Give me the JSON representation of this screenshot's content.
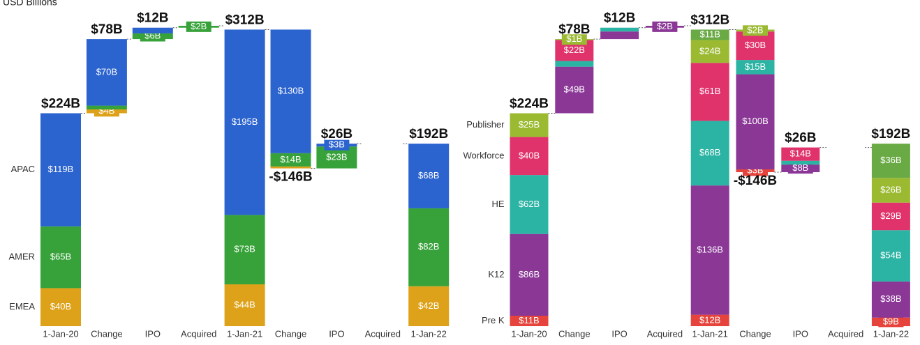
{
  "chart_data": [
    {
      "type": "waterfall",
      "title": "USD Billions",
      "categories": [
        "1-Jan-20",
        "Change",
        "IPO",
        "Acquired",
        "1-Jan-21",
        "Change",
        "IPO",
        "Acquired",
        "1-Jan-22"
      ],
      "kinds": [
        "total",
        "delta",
        "delta",
        "delta",
        "total",
        "delta",
        "delta",
        "delta",
        "total"
      ],
      "total_labels": [
        "$224B",
        "$78B",
        "$12B",
        null,
        "$312B",
        "-$146B",
        "$26B",
        null,
        "$192B"
      ],
      "series": [
        {
          "name": "EMEA",
          "color": "#dea21a",
          "values": [
            40,
            4,
            0,
            0,
            44,
            -2,
            0,
            0,
            42
          ],
          "value_labels": [
            "$40B",
            "$4B",
            null,
            null,
            "$44B",
            null,
            null,
            null,
            "$42B"
          ]
        },
        {
          "name": "AMER",
          "color": "#38a23a",
          "values": [
            65,
            4,
            6,
            2,
            73,
            -14,
            23,
            0,
            82
          ],
          "value_labels": [
            "$65B",
            null,
            "$6B",
            "$2B",
            "$73B",
            "$14B",
            "$23B",
            null,
            "$82B"
          ]
        },
        {
          "name": "APAC",
          "color": "#2b63cf",
          "values": [
            119,
            70,
            6,
            0,
            195,
            -130,
            3,
            0,
            68
          ],
          "value_labels": [
            "$119B",
            "$70B",
            null,
            null,
            "$195B",
            "$130B",
            "$3B",
            null,
            "$68B"
          ]
        }
      ]
    },
    {
      "type": "waterfall",
      "categories": [
        "1-Jan-20",
        "Change",
        "IPO",
        "Acquired",
        "1-Jan-21",
        "Change",
        "IPO",
        "Acquired",
        "1-Jan-22"
      ],
      "kinds": [
        "total",
        "delta",
        "delta",
        "delta",
        "total",
        "delta",
        "delta",
        "delta",
        "total"
      ],
      "total_labels": [
        "$224B",
        "$78B",
        "$12B",
        null,
        "$312B",
        "-$146B",
        "$26B",
        null,
        "$192B"
      ],
      "series": [
        {
          "name": "Pre K",
          "color": "#e5433b",
          "values": [
            11,
            0,
            0,
            0,
            12,
            -3,
            0,
            0,
            9
          ],
          "value_labels": [
            "$11B",
            null,
            null,
            null,
            "$12B",
            "$3B",
            null,
            null,
            "$9B"
          ]
        },
        {
          "name": "K12",
          "color": "#8a3796",
          "values": [
            86,
            49,
            8,
            2,
            136,
            -100,
            8,
            0,
            38
          ],
          "value_labels": [
            "$86B",
            "$49B",
            null,
            "$2B",
            "$136B",
            "$100B",
            "$8B",
            null,
            "$38B"
          ]
        },
        {
          "name": "HE",
          "color": "#2bb3a3",
          "values": [
            62,
            6,
            4,
            0,
            68,
            -15,
            4,
            0,
            54
          ],
          "value_labels": [
            "$62B",
            null,
            null,
            null,
            "$68B",
            "$15B",
            null,
            null,
            "$54B"
          ]
        },
        {
          "name": "Workforce",
          "color": "#e0326b",
          "values": [
            40,
            22,
            0,
            0,
            61,
            -30,
            14,
            0,
            29
          ],
          "value_labels": [
            "$40B",
            "$22B",
            null,
            null,
            "$61B",
            "$30B",
            "$14B",
            null,
            "$29B"
          ]
        },
        {
          "name": "Publisher",
          "color": "#9bba32",
          "values": [
            25,
            1,
            0,
            0,
            24,
            -2,
            0,
            0,
            26
          ],
          "value_labels": [
            "$25B",
            "$1B",
            null,
            null,
            "$24B",
            "$2B",
            null,
            null,
            "$26B"
          ]
        },
        {
          "name": null,
          "color": "#6aaa45",
          "values": [
            0,
            0,
            0,
            0,
            11,
            0,
            0,
            0,
            36
          ],
          "value_labels": [
            null,
            null,
            null,
            null,
            "$11B",
            null,
            null,
            null,
            "$36B"
          ]
        }
      ]
    }
  ]
}
